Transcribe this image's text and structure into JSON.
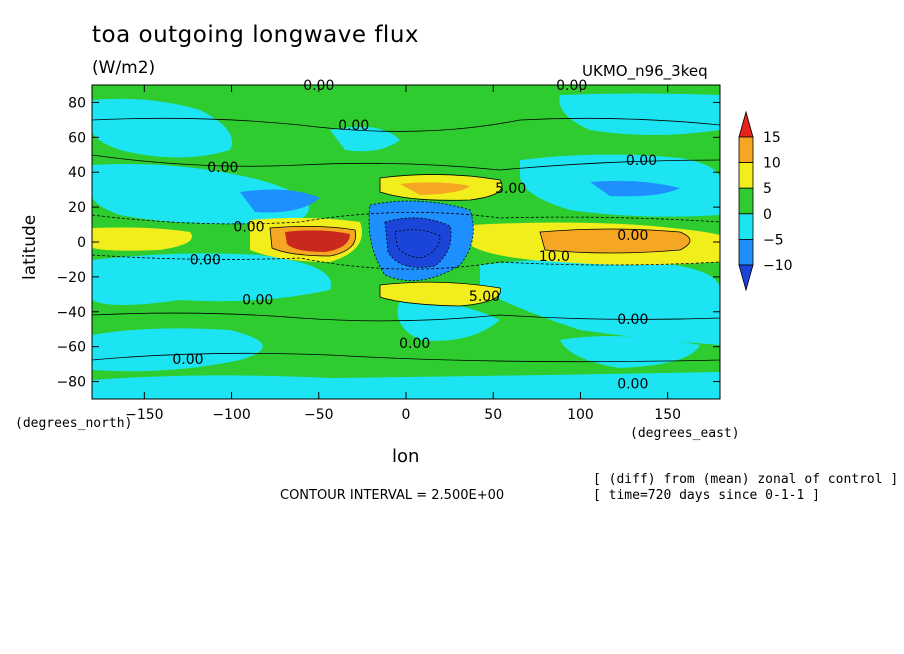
{
  "chart_data": {
    "type": "heatmap",
    "title": "toa outgoing longwave flux",
    "units": "(W/m2)",
    "model": "UKMO_n96_3keq",
    "xlabel": "lon",
    "ylabel": "latitude",
    "x_units": "(degrees_east)",
    "y_units": "(degrees_north)",
    "xlim": [
      -180,
      180
    ],
    "ylim": [
      -90,
      90
    ],
    "x_ticks": [
      -150,
      -100,
      -50,
      0,
      50,
      100,
      150
    ],
    "y_ticks": [
      80,
      60,
      40,
      20,
      0,
      -20,
      -40,
      -60,
      -80
    ],
    "colorbar": {
      "levels": [
        15,
        10,
        5,
        0,
        -5,
        -10
      ],
      "colors": [
        "#e8231e",
        "#f5a623",
        "#f2ee1c",
        "#2ecc2e",
        "#1de4f2",
        "#1e8fff",
        "#1a45d8"
      ]
    },
    "contour_labels": [
      "0.00",
      "0.00",
      "0.00",
      "0.00",
      "0.00",
      "0.00",
      "0.00",
      "0.00",
      "0.00",
      "5.00",
      "5.00",
      "10.0",
      "0.00",
      "0.00",
      "0.00",
      "0.00"
    ],
    "contour_interval": "CONTOUR INTERVAL = 2.500E+00",
    "notes": [
      "[ (diff) from (mean) zonal of control ]",
      "[ time=720 days since 0-1-1 ]"
    ]
  }
}
